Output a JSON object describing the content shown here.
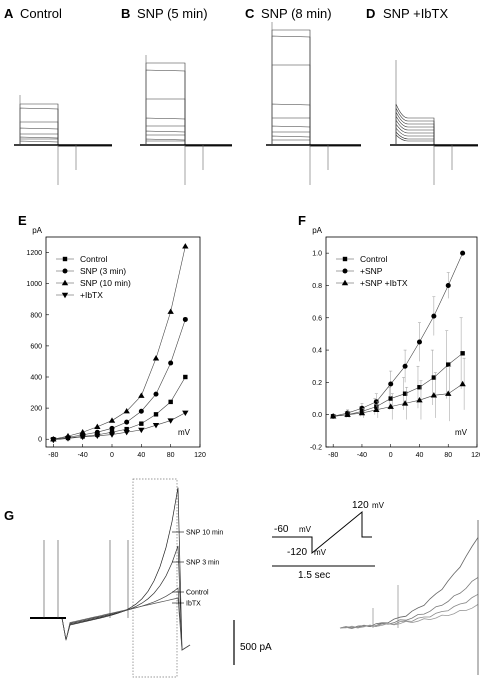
{
  "traces_row": {
    "panels": [
      {
        "letter": "A",
        "title": "Control"
      },
      {
        "letter": "B",
        "title": "SNP (5 min)"
      },
      {
        "letter": "C",
        "title": "SNP (8 min)"
      },
      {
        "letter": "D",
        "title": "SNP +IbTX"
      }
    ]
  },
  "chart_data": [
    {
      "panel": "E",
      "type": "line",
      "ylabel": "pA",
      "xlabel": "mV",
      "xlim": [
        -90,
        120
      ],
      "ylim": [
        -50,
        1300
      ],
      "xticks": [
        -80,
        -40,
        0,
        40,
        80,
        120
      ],
      "yticks": [
        0,
        200,
        400,
        600,
        800,
        1000,
        1200
      ],
      "legend_position": "top-left",
      "series": [
        {
          "name": "Control",
          "marker": "square",
          "x": [
            -80,
            -60,
            -40,
            -20,
            0,
            20,
            40,
            60,
            80,
            100
          ],
          "y": [
            0,
            8,
            18,
            28,
            45,
            65,
            100,
            160,
            240,
            400
          ]
        },
        {
          "name": "SNP (3 min)",
          "marker": "circle",
          "x": [
            -80,
            -60,
            -40,
            -20,
            0,
            20,
            40,
            60,
            80,
            100
          ],
          "y": [
            0,
            12,
            28,
            45,
            70,
            110,
            180,
            290,
            490,
            770
          ]
        },
        {
          "name": "SNP (10 min)",
          "marker": "triangle-up",
          "x": [
            -80,
            -60,
            -40,
            -20,
            0,
            20,
            40,
            60,
            80,
            100
          ],
          "y": [
            0,
            20,
            45,
            80,
            120,
            180,
            280,
            520,
            820,
            1240
          ]
        },
        {
          "name": "+IbTX",
          "marker": "triangle-down",
          "x": [
            -80,
            -60,
            -40,
            -20,
            0,
            20,
            40,
            60,
            80,
            100
          ],
          "y": [
            -5,
            5,
            15,
            22,
            30,
            45,
            60,
            90,
            120,
            170
          ]
        }
      ]
    },
    {
      "panel": "F",
      "type": "line",
      "ylabel": "pA",
      "xlabel": "mV",
      "xlim": [
        -90,
        120
      ],
      "ylim": [
        -0.2,
        1.1
      ],
      "xticks": [
        -80,
        -40,
        0,
        40,
        80,
        120
      ],
      "yticks": [
        -0.2,
        0.0,
        0.2,
        0.4,
        0.6,
        0.8,
        1.0
      ],
      "legend_position": "top-left",
      "series": [
        {
          "name": "Control",
          "marker": "square",
          "x": [
            -80,
            -60,
            -40,
            -20,
            0,
            20,
            40,
            60,
            80,
            100
          ],
          "y": [
            -0.01,
            0.0,
            0.02,
            0.05,
            0.1,
            0.13,
            0.17,
            0.23,
            0.31,
            0.38
          ],
          "err": [
            0.01,
            0.02,
            0.03,
            0.05,
            0.07,
            0.1,
            0.13,
            0.17,
            0.21,
            0.22
          ]
        },
        {
          "name": "+SNP",
          "marker": "circle",
          "x": [
            -80,
            -60,
            -40,
            -20,
            0,
            20,
            40,
            60,
            80,
            100
          ],
          "y": [
            -0.01,
            0.01,
            0.04,
            0.08,
            0.19,
            0.3,
            0.45,
            0.61,
            0.8,
            1.0
          ],
          "err": [
            0.01,
            0.02,
            0.03,
            0.05,
            0.08,
            0.1,
            0.12,
            0.12,
            0.08,
            0.0
          ]
        },
        {
          "name": "+SNP +IbTX",
          "marker": "triangle-up",
          "x": [
            -80,
            -60,
            -40,
            -20,
            0,
            20,
            40,
            60,
            80,
            100
          ],
          "y": [
            -0.01,
            0.0,
            0.01,
            0.03,
            0.05,
            0.07,
            0.09,
            0.12,
            0.13,
            0.19
          ],
          "err": [
            0.01,
            0.02,
            0.03,
            0.05,
            0.08,
            0.1,
            0.12,
            0.14,
            0.17,
            0.16
          ]
        }
      ]
    }
  ],
  "panel_g": {
    "letter": "G",
    "annotations": [
      "SNP 10 min",
      "SNP 3 min",
      "Control",
      "IbTX"
    ],
    "scale_bar": "500 pA",
    "protocol": {
      "v_start": "-60",
      "v_low": "-120",
      "v_high": "120",
      "unit": "mV",
      "duration": "1.5 sec"
    }
  }
}
